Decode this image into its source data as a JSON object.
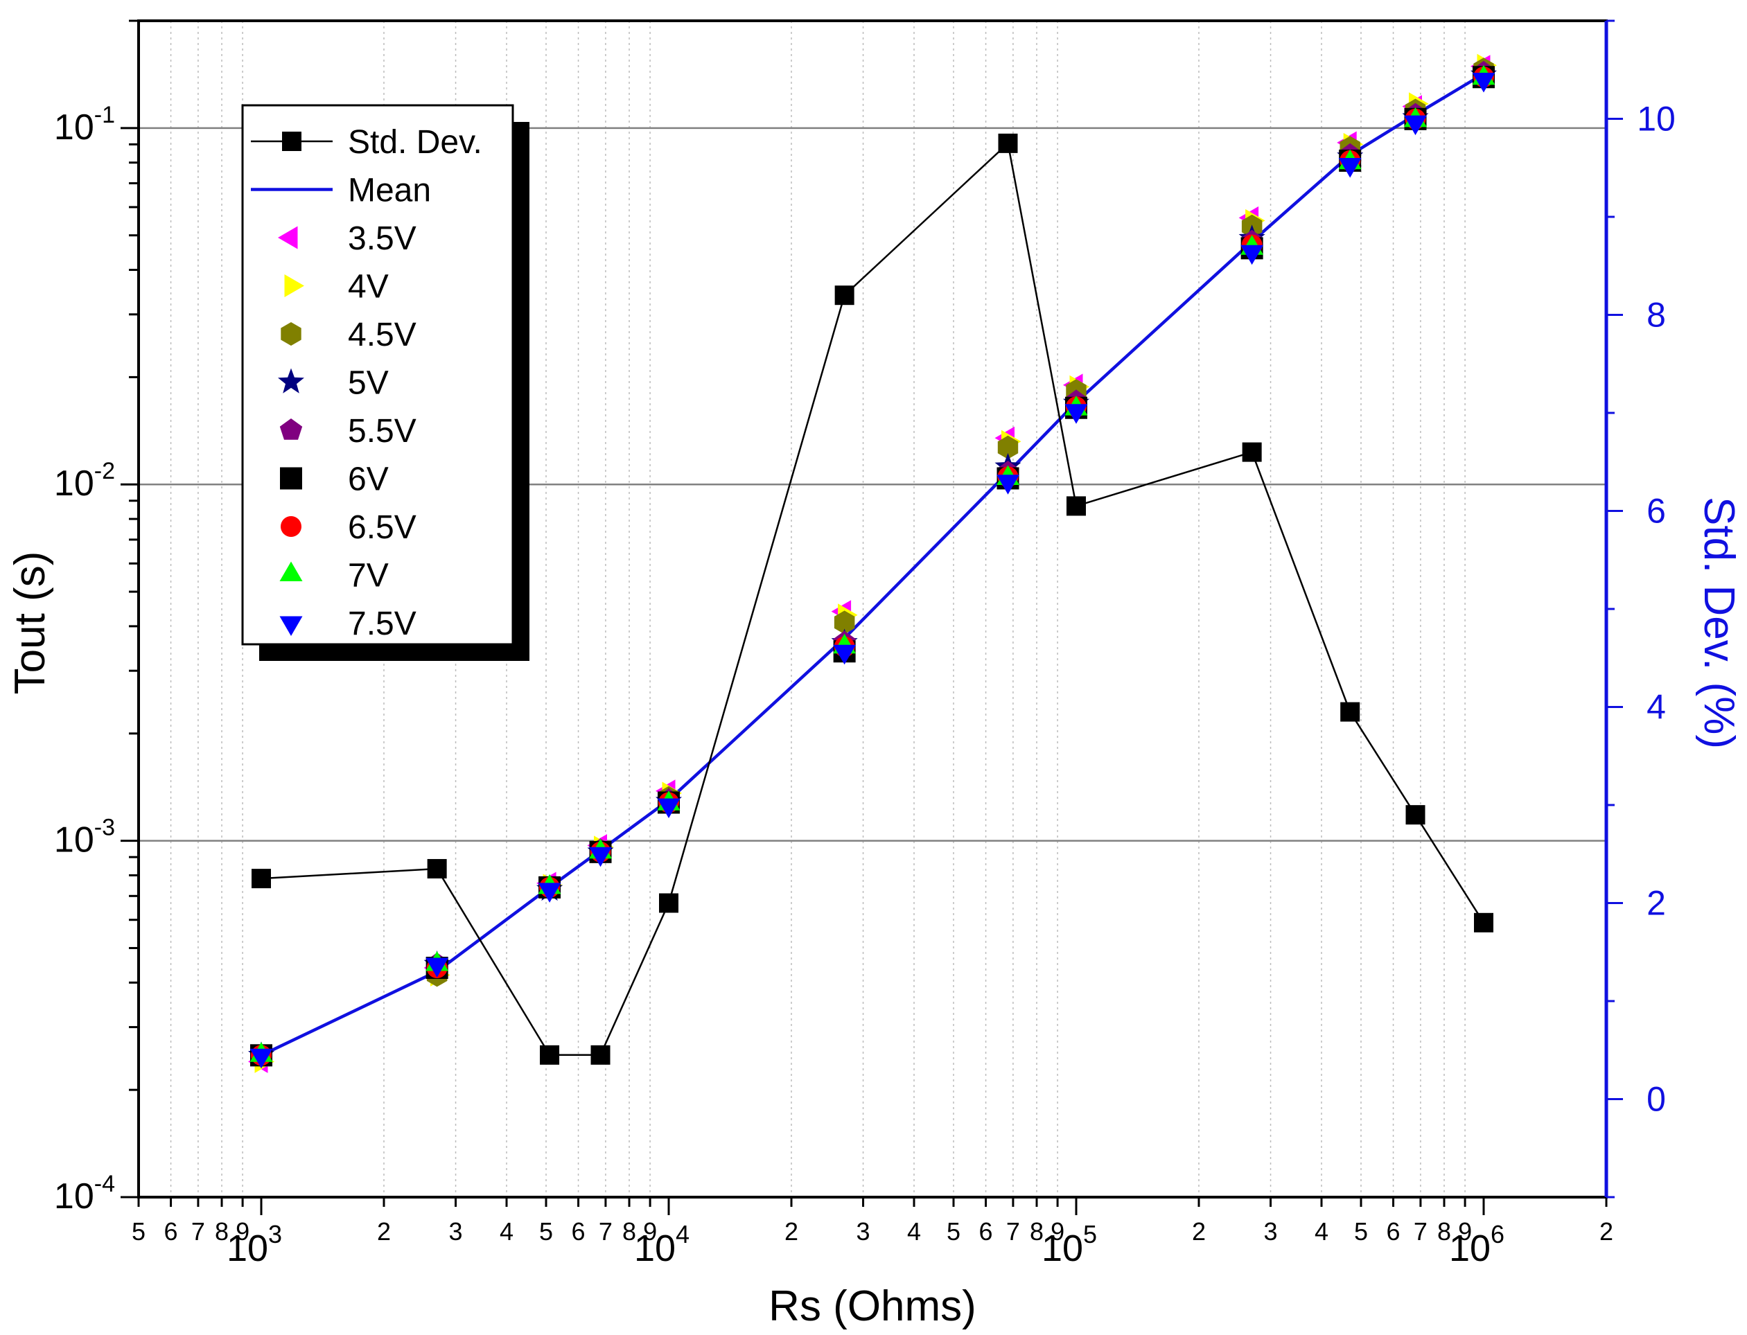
{
  "chart_data": {
    "type": "scatter",
    "xscale": "log",
    "yscale": "log",
    "xlabel": "Rs (Ohms)",
    "ylabel": "Tout (s)",
    "y2label": "Std. Dev. (%)",
    "xlim": [
      500,
      2000000
    ],
    "ylim": [
      0.0001,
      0.2
    ],
    "y2lim": [
      -1,
      11
    ],
    "x_ticks": [
      {
        "v": 1000,
        "base": "10",
        "exp": "3"
      },
      {
        "v": 10000,
        "base": "10",
        "exp": "4"
      },
      {
        "v": 100000,
        "base": "10",
        "exp": "5"
      },
      {
        "v": 1000000,
        "base": "10",
        "exp": "6"
      }
    ],
    "y_ticks": [
      {
        "v": 0.0001,
        "base": "10",
        "exp": "-4"
      },
      {
        "v": 0.001,
        "base": "10",
        "exp": "-3"
      },
      {
        "v": 0.01,
        "base": "10",
        "exp": "-2"
      },
      {
        "v": 0.1,
        "base": "10",
        "exp": "-1"
      }
    ],
    "y2_ticks": [
      "0",
      "2",
      "4",
      "6",
      "8",
      "10"
    ],
    "x": [
      1000,
      2700,
      5100,
      6800,
      10000,
      27000,
      68000,
      100000,
      270000,
      470000,
      680000,
      1000000
    ],
    "mean": {
      "name": "Mean",
      "color": "#1010e0",
      "values": [
        0.00025,
        0.00043,
        0.00074,
        0.00094,
        0.0013,
        0.0037,
        0.0108,
        0.017,
        0.048,
        0.084,
        0.109,
        0.142
      ]
    },
    "std_dev": {
      "name": "Std. Dev.",
      "axis": "right",
      "color": "#000000",
      "values": [
        2.25,
        2.35,
        0.45,
        0.45,
        2.0,
        8.2,
        9.75,
        6.05,
        6.6,
        3.95,
        2.9,
        1.8
      ]
    },
    "series": [
      {
        "name": "3.5V",
        "marker": "triangle-left",
        "color": "#ff00ff",
        "values": [
          0.00024,
          0.00044,
          0.00076,
          0.00097,
          0.00138,
          0.0044,
          0.0135,
          0.019,
          0.056,
          0.091,
          0.115,
          0.149
        ]
      },
      {
        "name": "4V",
        "marker": "triangle-right",
        "color": "#ffff00",
        "values": [
          0.00024,
          0.00042,
          0.00075,
          0.00096,
          0.00136,
          0.0043,
          0.0132,
          0.0188,
          0.055,
          0.09,
          0.117,
          0.15
        ]
      },
      {
        "name": "4.5V",
        "marker": "hexagon",
        "color": "#808000",
        "values": [
          0.00025,
          0.00042,
          0.00074,
          0.00094,
          0.00132,
          0.0041,
          0.0127,
          0.0183,
          0.053,
          0.088,
          0.112,
          0.146
        ]
      },
      {
        "name": "5V",
        "marker": "star",
        "color": "#000080",
        "values": [
          0.00025,
          0.00045,
          0.00073,
          0.00093,
          0.00129,
          0.0036,
          0.0112,
          0.0169,
          0.049,
          0.083,
          0.107,
          0.141
        ]
      },
      {
        "name": "5.5V",
        "marker": "pentagon",
        "color": "#800080",
        "values": [
          0.00025,
          0.00045,
          0.00074,
          0.00094,
          0.0013,
          0.0036,
          0.0108,
          0.0171,
          0.048,
          0.084,
          0.109,
          0.143
        ]
      },
      {
        "name": "6V",
        "marker": "square",
        "color": "#000000",
        "values": [
          0.00025,
          0.00044,
          0.00074,
          0.00093,
          0.00128,
          0.0034,
          0.0104,
          0.0164,
          0.046,
          0.081,
          0.106,
          0.139
        ]
      },
      {
        "name": "6.5V",
        "marker": "circle",
        "color": "#ff0000",
        "values": [
          0.00025,
          0.00044,
          0.00074,
          0.00093,
          0.00128,
          0.0035,
          0.0105,
          0.0165,
          0.047,
          0.081,
          0.106,
          0.139
        ]
      },
      {
        "name": "7V",
        "marker": "triangle-up",
        "color": "#00ff00",
        "values": [
          0.00025,
          0.00045,
          0.00074,
          0.00093,
          0.00127,
          0.0035,
          0.0104,
          0.0163,
          0.046,
          0.08,
          0.105,
          0.138
        ]
      },
      {
        "name": "7.5V",
        "marker": "triangle-down",
        "color": "#0000ff",
        "values": [
          0.00025,
          0.00045,
          0.00073,
          0.00092,
          0.00126,
          0.0034,
          0.0102,
          0.0161,
          0.045,
          0.079,
          0.104,
          0.137
        ]
      }
    ],
    "legend": {
      "position": "top-left",
      "entries": [
        "Std. Dev.",
        "Mean",
        "3.5V",
        "4V",
        "4.5V",
        "5V",
        "5.5V",
        "6V",
        "6.5V",
        "7V",
        "7.5V"
      ]
    }
  }
}
